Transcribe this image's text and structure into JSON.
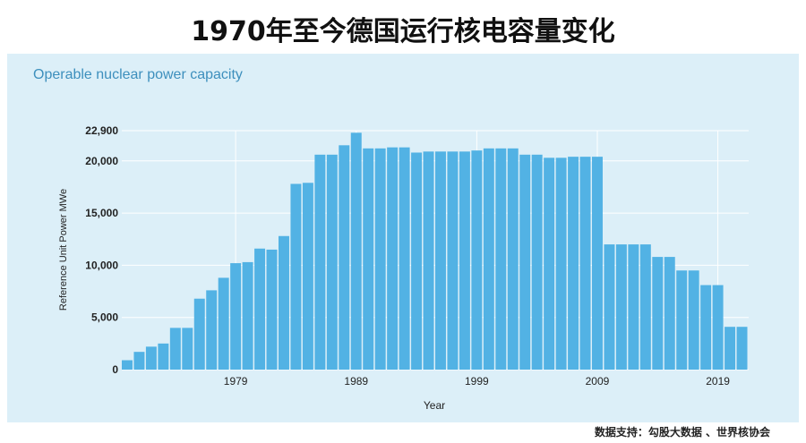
{
  "title": "1970年至今德国运行核电容量变化",
  "subtitle": "Operable nuclear power capacity",
  "source": "数据支持：勾股大数据 、世界核协会",
  "colors": {
    "bar": "#52b2e4",
    "panel": "#dceff8",
    "grid": "#ffffff"
  },
  "chart_data": {
    "type": "bar",
    "title": "1970年至今德国运行核电容量变化",
    "subtitle": "Operable nuclear power capacity",
    "xlabel": "Year",
    "ylabel": "Reference Unit Power MWe",
    "ylim": [
      0,
      22900
    ],
    "y_ticks": [
      0,
      5000,
      10000,
      15000,
      20000,
      22900
    ],
    "y_tick_labels": [
      "0",
      "5,000",
      "10,000",
      "15,000",
      "20,000",
      "22,900"
    ],
    "x_tick_labels": [
      "1979",
      "1989",
      "1999",
      "2009",
      "2019"
    ],
    "grid": true,
    "categories": [
      1970,
      1971,
      1972,
      1973,
      1974,
      1975,
      1976,
      1977,
      1978,
      1979,
      1980,
      1981,
      1982,
      1983,
      1984,
      1985,
      1986,
      1987,
      1988,
      1989,
      1990,
      1991,
      1992,
      1993,
      1994,
      1995,
      1996,
      1997,
      1998,
      1999,
      2000,
      2001,
      2002,
      2003,
      2004,
      2005,
      2006,
      2007,
      2008,
      2009,
      2010,
      2011,
      2012,
      2013,
      2014,
      2015,
      2016,
      2017,
      2018,
      2019,
      2020,
      2021
    ],
    "values": [
      900,
      1700,
      2200,
      2500,
      4000,
      4000,
      6800,
      7600,
      8800,
      10200,
      10300,
      11600,
      11500,
      12800,
      17800,
      17900,
      20600,
      20600,
      21500,
      22700,
      21200,
      21200,
      21300,
      21300,
      20800,
      20900,
      20900,
      20900,
      20900,
      21000,
      21200,
      21200,
      21200,
      20600,
      20600,
      20300,
      20300,
      20400,
      20400,
      20400,
      12000,
      12000,
      12000,
      12000,
      10800,
      10800,
      9500,
      9500,
      8100,
      8100,
      4100,
      4100
    ]
  }
}
